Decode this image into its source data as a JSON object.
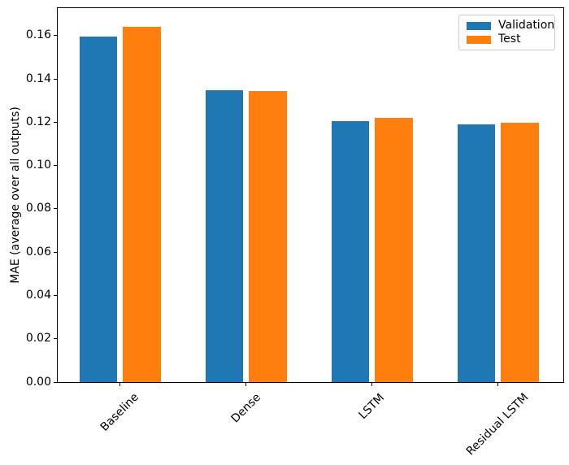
{
  "chart_data": {
    "type": "bar",
    "title": "",
    "categories": [
      "Baseline",
      "Dense",
      "LSTM",
      "Residual LSTM"
    ],
    "series": [
      {
        "name": "Validation",
        "color": "#1f77b4",
        "values": [
          0.1595,
          0.1349,
          0.1207,
          0.119
        ]
      },
      {
        "name": "Test",
        "color": "#ff7f0e",
        "values": [
          0.164,
          0.1344,
          0.122,
          0.1199
        ]
      }
    ],
    "xlabel": "",
    "ylabel": "MAE (average over all outputs)",
    "ylim": [
      0,
      0.1727
    ],
    "yticks": [
      0.0,
      0.02,
      0.04,
      0.06,
      0.08,
      0.1,
      0.12,
      0.14,
      0.16
    ],
    "ytick_labels": [
      "0.00",
      "0.02",
      "0.04",
      "0.06",
      "0.08",
      "0.10",
      "0.12",
      "0.14",
      "0.16"
    ],
    "xtick_rotation_deg": 45,
    "grid": false,
    "legend_position": "upper right",
    "axis_color": "#000000",
    "background_color": "#ffffff"
  }
}
